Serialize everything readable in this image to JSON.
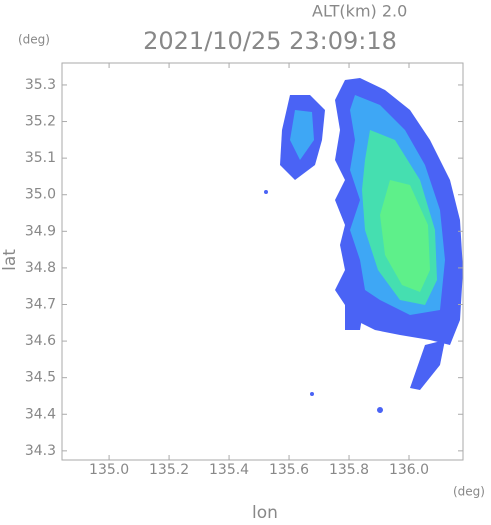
{
  "chart_data": {
    "type": "radar-map",
    "title": "2021/10/25 23:09:18",
    "altitude_label": "ALT(km)  2.0",
    "y_unit": "(deg)",
    "x_unit": "(deg)",
    "x_label": "lon",
    "y_label": "lat",
    "xlim": [
      134.843,
      136.18
    ],
    "ylim": [
      34.275,
      35.36
    ],
    "xticks": [
      {
        "value": 135.0,
        "label": "135.0"
      },
      135.2,
      135.4,
      135.6,
      135.8,
      {
        "value": 136.0,
        "label": "136.0"
      }
    ],
    "yticks": [
      34.3,
      34.4,
      34.5,
      34.6,
      34.7,
      34.8,
      34.9,
      {
        "value": 35.0,
        "label": "35.0"
      },
      35.1,
      35.2,
      35.3
    ]
  }
}
